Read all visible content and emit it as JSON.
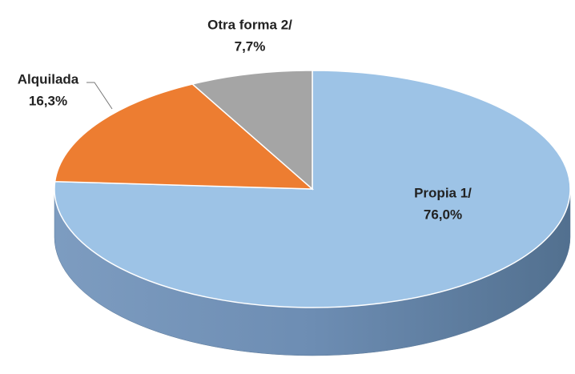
{
  "chart_data": {
    "type": "pie",
    "categories": [
      "Propia 1/",
      "Alquilada",
      "Otra forma 2/"
    ],
    "values": [
      76.0,
      16.3,
      7.7
    ],
    "value_labels": [
      "76,0%",
      "16,3%",
      "7,7%"
    ],
    "colors": [
      "#9dc3e6",
      "#ed7d31",
      "#a5a5a5"
    ]
  }
}
